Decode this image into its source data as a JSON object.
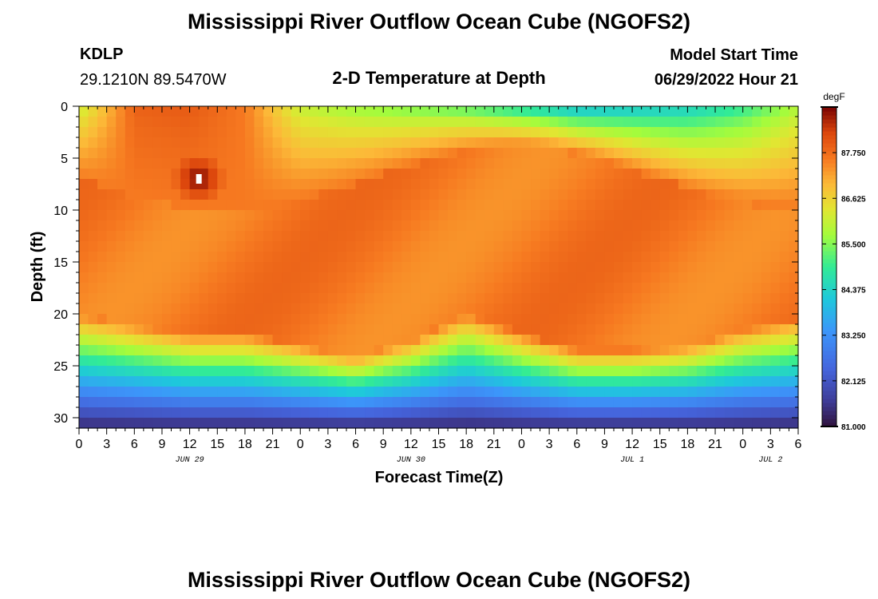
{
  "chart_data": {
    "type": "heatmap",
    "title": "Mississippi River Outflow Ocean Cube (NGOFS2)",
    "subtitle": "2-D Temperature at Depth",
    "station": "KDLP",
    "location": "29.1210N  89.5470W",
    "model_start_label": "Model Start Time",
    "model_start_value": "06/29/2022 Hour 21",
    "xlabel": "Forecast Time(Z)",
    "ylabel": "Depth (ft)",
    "xlim": [
      0,
      78
    ],
    "ylim": [
      0,
      31
    ],
    "x_tick_labels": [
      "0",
      "3",
      "6",
      "9",
      "12",
      "15",
      "18",
      "21",
      "0",
      "3",
      "6",
      "9",
      "12",
      "15",
      "18",
      "21",
      "0",
      "3",
      "6",
      "9",
      "12",
      "15",
      "18",
      "21",
      "0",
      "3",
      "6"
    ],
    "y_tick_labels": [
      "0",
      "5",
      "10",
      "15",
      "20",
      "25",
      "30"
    ],
    "y_tick_values": [
      0,
      5,
      10,
      15,
      20,
      25,
      30
    ],
    "date_labels": [
      {
        "label": "JUN 29",
        "hour": 12
      },
      {
        "label": "JUN 30",
        "hour": 36
      },
      {
        "label": "JUL 1",
        "hour": 60
      },
      {
        "label": "JUL 2",
        "hour": 75
      }
    ],
    "colorbar": {
      "unit": "degF",
      "min": 81.0,
      "max": 88.875,
      "labels": [
        "87.750",
        "86.625",
        "85.500",
        "84.375",
        "83.250",
        "82.125",
        "81.000"
      ],
      "label_values": [
        87.75,
        86.625,
        85.5,
        84.375,
        83.25,
        82.125,
        81.0
      ]
    },
    "field_description": "Temperature (degF) by forecast hour (x) and depth in ft (y); approximate values read from color",
    "thermocline_depth_by_hour": {
      "hours": [
        0,
        6,
        12,
        18,
        24,
        30,
        36,
        42,
        48,
        54,
        60,
        66,
        72,
        78
      ],
      "depth_ft": [
        24,
        25,
        26,
        26,
        27,
        28,
        26.5,
        24,
        26,
        27.5,
        27.5,
        27,
        25.5,
        24.5
      ]
    },
    "surface_temperature_by_hour": {
      "hours": [
        0,
        6,
        12,
        18,
        24,
        30,
        36,
        42,
        48,
        54,
        60,
        66,
        72,
        78
      ],
      "degF": [
        86.0,
        87.9,
        88.0,
        87.6,
        86.0,
        85.6,
        85.3,
        85.0,
        84.4,
        83.8,
        84.0,
        84.2,
        84.8,
        85.8
      ]
    },
    "max_temperature_spot": {
      "hour": 13,
      "depth_ft": 7,
      "degF": 88.9
    },
    "second_title": "Mississippi River Outflow Ocean Cube (NGOFS2)"
  }
}
